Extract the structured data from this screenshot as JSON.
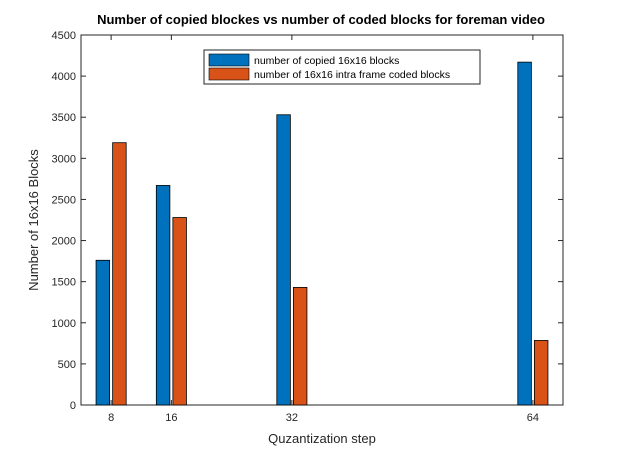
{
  "chart_data": {
    "type": "bar",
    "title": "Number of copied blockes vs number of coded blocks for foreman video",
    "xlabel": "Quzantization step",
    "ylabel": "Number of 16x16 Blocks",
    "x": [
      8,
      16,
      32,
      64
    ],
    "x_tick_labels": [
      "8",
      "16",
      "32",
      "64"
    ],
    "xlim": [
      4,
      68
    ],
    "ylim": [
      0,
      4500
    ],
    "y_ticks": [
      0,
      500,
      1000,
      1500,
      2000,
      2500,
      3000,
      3500,
      4000,
      4500
    ],
    "grid": false,
    "legend_position": "top-center",
    "series": [
      {
        "name": "number of copied 16x16 blocks",
        "color": "#0072BD",
        "values": [
          1760,
          2670,
          3530,
          4170
        ]
      },
      {
        "name": "number of 16x16 intra frame coded blocks",
        "color": "#D95319",
        "values": [
          3190,
          2280,
          1430,
          785
        ]
      }
    ]
  }
}
